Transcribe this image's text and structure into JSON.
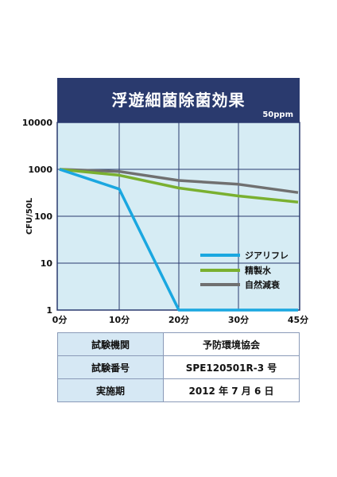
{
  "chart_data": {
    "type": "line",
    "title": "浮遊細菌除菌効果",
    "subtitle": "50ppm",
    "ylabel": "CFU/50L",
    "xlabel": "",
    "y_scale": "log",
    "ylim": [
      1,
      10000
    ],
    "y_ticks": [
      "10000",
      "1000",
      "100",
      "10",
      "1"
    ],
    "y_tick_values": [
      10000,
      1000,
      100,
      10,
      1
    ],
    "categories": [
      "0分",
      "10分",
      "20分",
      "30分",
      "45分"
    ],
    "grid": true,
    "legend_position": "inside-bottom-right",
    "series": [
      {
        "name": "ジアリフレ",
        "color": "#1aa7e0",
        "points": [
          [
            0,
            1000
          ],
          [
            10,
            380
          ],
          [
            20,
            1
          ],
          [
            30,
            1
          ],
          [
            45,
            1
          ]
        ]
      },
      {
        "name": "精製水",
        "color": "#7ab030",
        "points": [
          [
            0,
            1000
          ],
          [
            10,
            750
          ],
          [
            20,
            400
          ],
          [
            30,
            270
          ],
          [
            45,
            200
          ]
        ]
      },
      {
        "name": "自然減衰",
        "color": "#707070",
        "points": [
          [
            0,
            1000
          ],
          [
            10,
            900
          ],
          [
            20,
            580
          ],
          [
            30,
            480
          ],
          [
            45,
            320
          ]
        ]
      }
    ]
  },
  "colors": {
    "plot_bg": "#d6ecf4",
    "grid": "#2a3a6e",
    "title_bg": "#2a3a6e"
  },
  "info_table": {
    "rows": [
      {
        "label": "試験機関",
        "value": "予防環境協会"
      },
      {
        "label": "試験番号",
        "value": "SPE120501R-3 号"
      },
      {
        "label": "実施期",
        "value": "2012 年 7 月 6 日"
      }
    ]
  }
}
